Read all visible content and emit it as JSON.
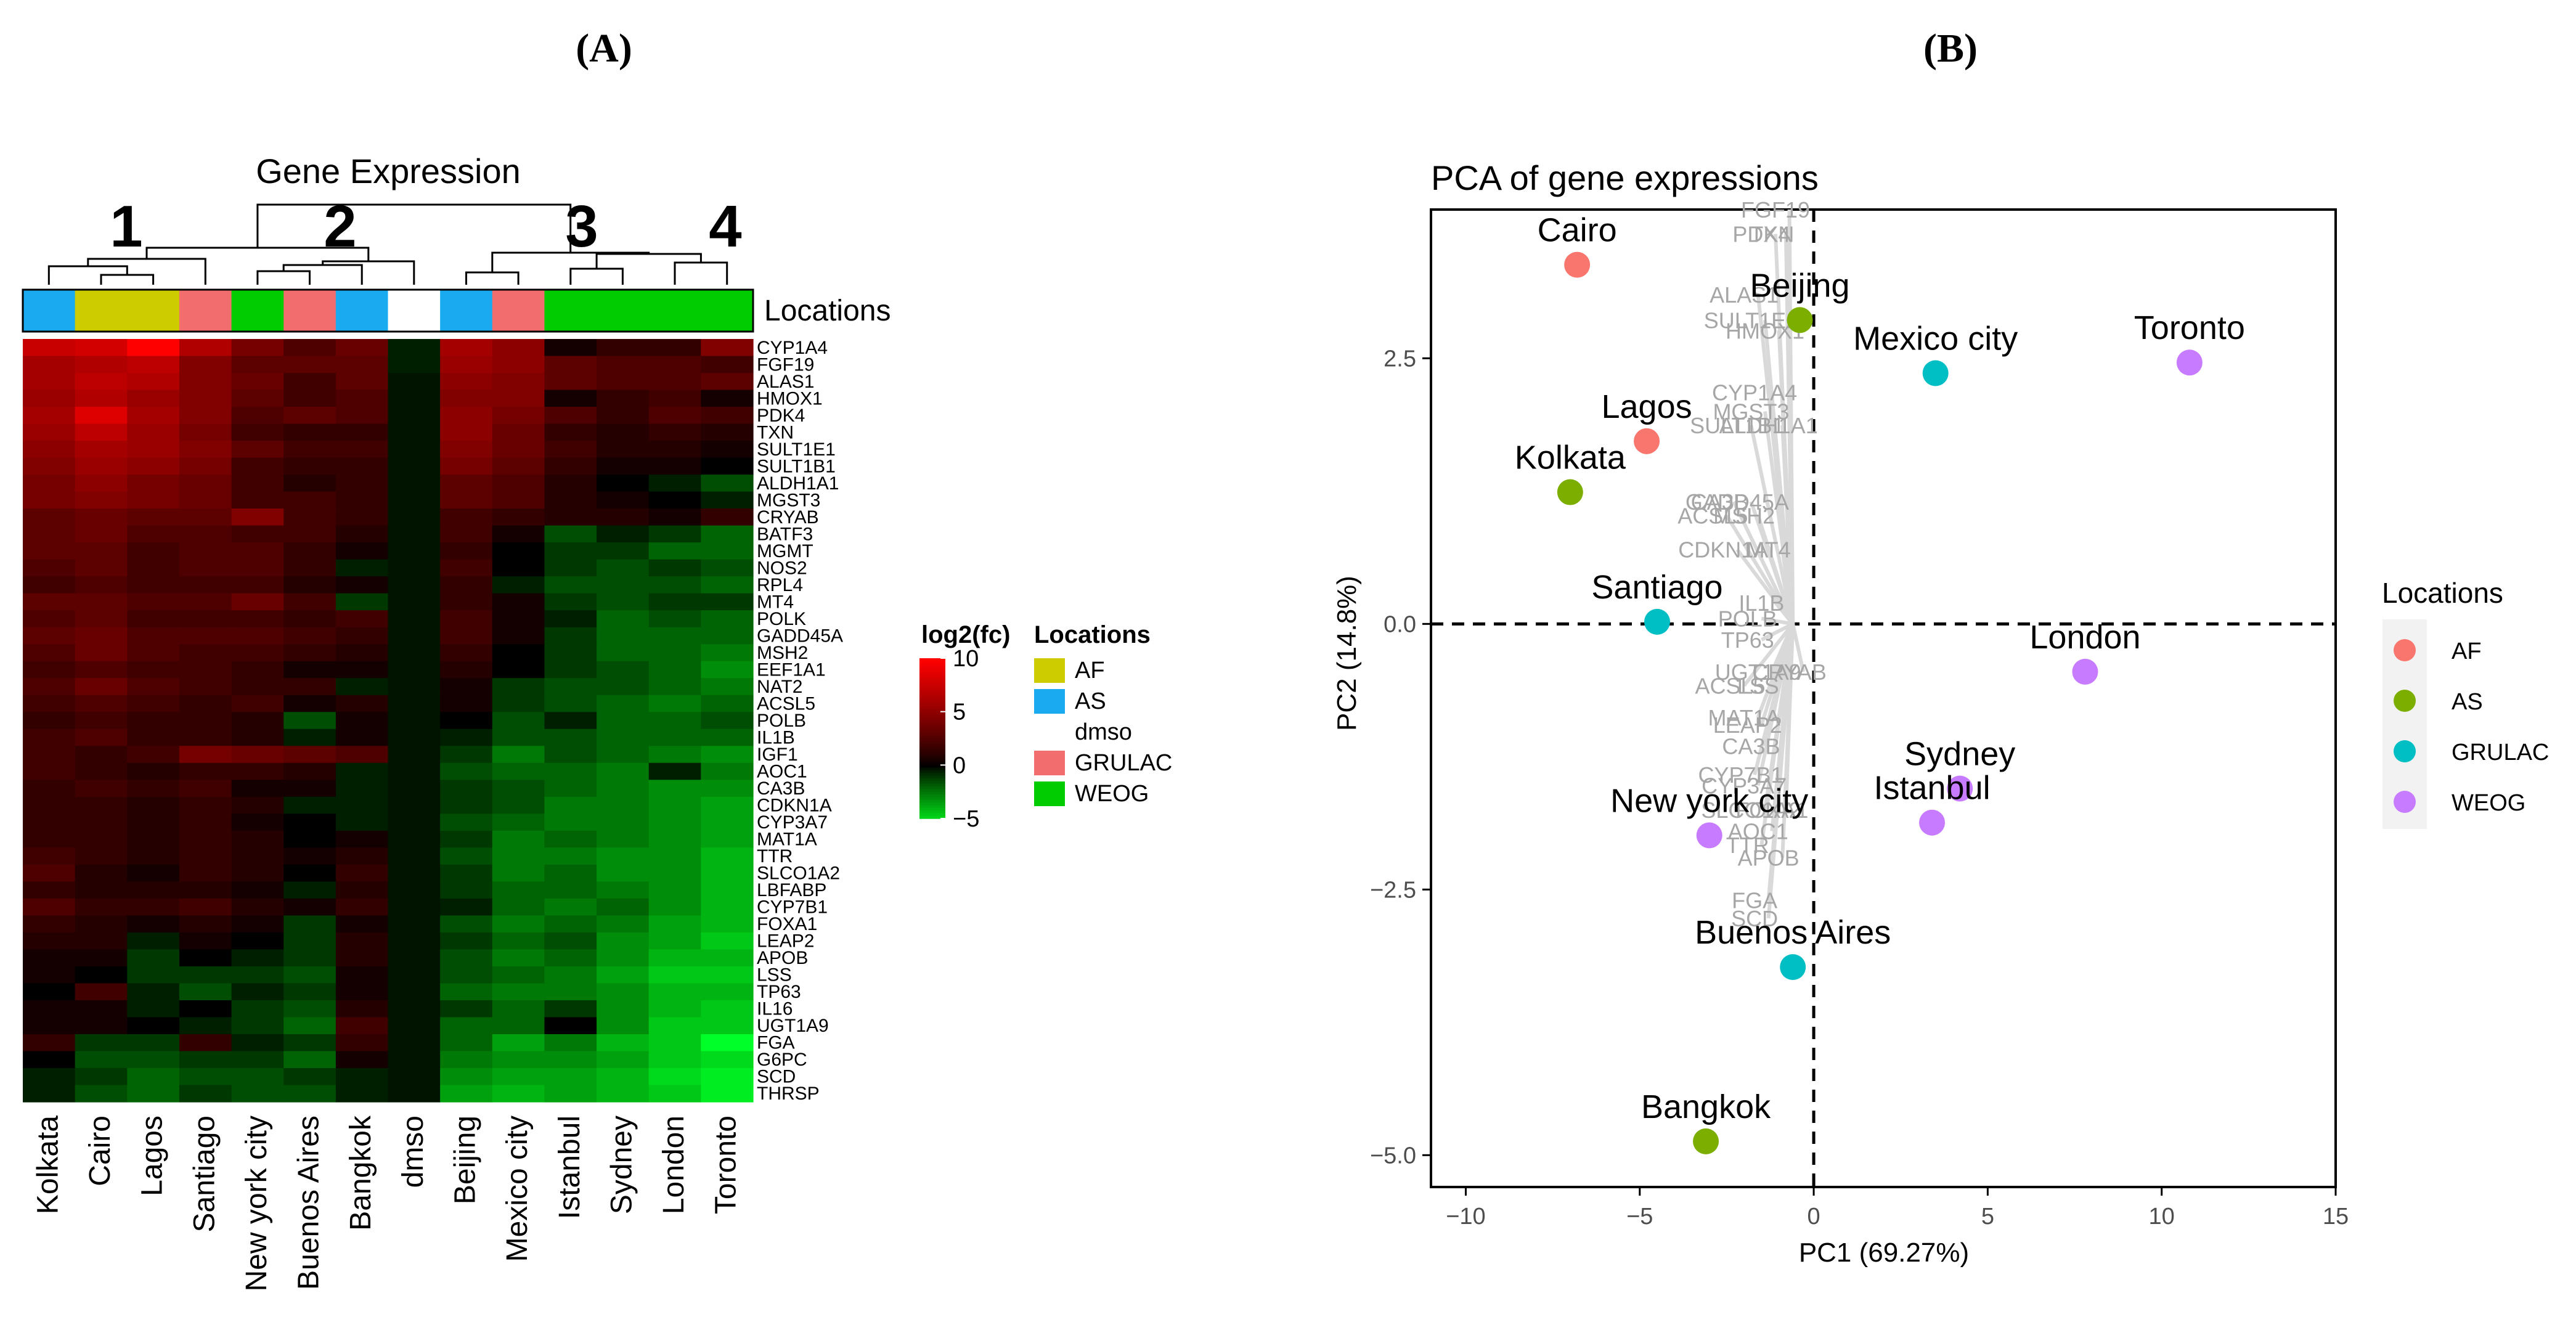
{
  "panel_labels": [
    "(A)",
    "(B)"
  ],
  "chart_data": [
    {
      "type": "heatmap",
      "title": "Gene Expression",
      "cluster_labels": [
        "1",
        "2",
        "3",
        "4"
      ],
      "columns": [
        "Kolkata",
        "Cairo",
        "Lagos",
        "Santiago",
        "New york city",
        "Buenos Aires",
        "Bangkok",
        "dmso",
        "Beijing",
        "Mexico city",
        "Istanbul",
        "Sydney",
        "London",
        "Toronto"
      ],
      "column_locations": [
        "AS",
        "AF",
        "AF",
        "GRULAC",
        "WEOG",
        "GRULAC",
        "AS",
        "dmso",
        "AS",
        "GRULAC",
        "WEOG",
        "WEOG",
        "WEOG",
        "WEOG"
      ],
      "annotation_label": "Locations",
      "genes": [
        "CYP1A4",
        "FGF19",
        "ALAS1",
        "HMOX1",
        "PDK4",
        "TXN",
        "SULT1E1",
        "SULT1B1",
        "ALDH1A1",
        "MGST3",
        "CRYAB",
        "BATF3",
        "MGMT",
        "NOS2",
        "RPL4",
        "MT4",
        "POLK",
        "GADD45A",
        "MSH2",
        "EEF1A1",
        "NAT2",
        "ACSL5",
        "POLB",
        "IL1B",
        "IGF1",
        "AOC1",
        "CA3B",
        "CDKN1A",
        "CYP3A7",
        "MAT1A",
        "TTR",
        "SLCO1A2",
        "LBFABP",
        "CYP7B1",
        "FOXA1",
        "LEAP2",
        "APOB",
        "LSS",
        "TP63",
        "IL16",
        "UGT1A9",
        "FGA",
        "G6PC",
        "SCD",
        "THRSP"
      ],
      "colorbar": {
        "title": "log2(fc)",
        "range": [
          -5,
          10
        ],
        "ticks": [
          "10",
          "5",
          "0",
          "−5"
        ],
        "tick_values": [
          10,
          5,
          0,
          -5
        ]
      },
      "legend": {
        "title": "Locations",
        "entries": [
          {
            "name": "AF",
            "color": "#cccc00"
          },
          {
            "name": "AS",
            "color": "#1aaaf0"
          },
          {
            "name": "dmso",
            "color": "#ffffff"
          },
          {
            "name": "GRULAC",
            "color": "#f26e6e"
          },
          {
            "name": "WEOG",
            "color": "#00cc00"
          }
        ]
      },
      "values": [
        [
          7.5,
          8.0,
          10.0,
          6.5,
          4.0,
          2.5,
          3.5,
          -0.5,
          6.0,
          5.0,
          0.5,
          1.5,
          1.5,
          4.5
        ],
        [
          6.0,
          6.5,
          7.0,
          4.5,
          3.0,
          3.0,
          3.0,
          -0.5,
          5.5,
          5.0,
          3.0,
          2.5,
          2.5,
          2.0
        ],
        [
          6.0,
          7.0,
          6.5,
          4.5,
          3.5,
          2.0,
          3.0,
          -0.3,
          5.0,
          4.5,
          3.0,
          2.5,
          2.5,
          3.0
        ],
        [
          5.5,
          6.5,
          5.5,
          4.5,
          3.0,
          2.0,
          2.5,
          -0.3,
          4.5,
          4.5,
          0.5,
          1.5,
          2.0,
          0.5
        ],
        [
          6.0,
          8.5,
          6.0,
          4.5,
          2.5,
          3.0,
          2.5,
          -0.3,
          5.0,
          4.0,
          2.5,
          1.5,
          2.5,
          2.0
        ],
        [
          5.5,
          7.0,
          5.5,
          4.0,
          2.0,
          1.5,
          1.5,
          -0.3,
          5.0,
          3.5,
          1.5,
          1.0,
          1.5,
          1.0
        ],
        [
          5.0,
          6.0,
          5.5,
          4.5,
          3.0,
          2.0,
          2.0,
          -0.3,
          4.5,
          3.5,
          2.0,
          1.0,
          1.0,
          0.5
        ],
        [
          4.5,
          5.5,
          5.0,
          4.0,
          2.0,
          1.5,
          1.5,
          -0.3,
          4.0,
          3.0,
          1.5,
          0.5,
          0.5,
          0.0
        ],
        [
          4.0,
          5.0,
          4.0,
          3.5,
          2.0,
          1.0,
          1.5,
          -0.3,
          3.0,
          2.5,
          1.0,
          0.0,
          -0.5,
          -1.5
        ],
        [
          4.0,
          4.5,
          4.0,
          3.5,
          2.0,
          2.0,
          1.5,
          -0.3,
          3.0,
          2.5,
          1.0,
          0.5,
          0.0,
          -0.5
        ],
        [
          3.0,
          3.5,
          3.0,
          3.0,
          4.5,
          2.0,
          1.5,
          -0.3,
          2.0,
          1.5,
          1.0,
          1.0,
          0.5,
          1.5
        ],
        [
          3.0,
          3.5,
          2.5,
          2.5,
          2.0,
          2.0,
          1.0,
          -0.3,
          2.0,
          0.5,
          -1.5,
          -0.5,
          -1.0,
          -2.0
        ],
        [
          3.0,
          3.0,
          2.0,
          2.5,
          2.5,
          1.5,
          0.5,
          -0.3,
          1.5,
          0.0,
          -1.0,
          -1.0,
          -2.0,
          -2.0
        ],
        [
          2.5,
          3.0,
          2.0,
          2.5,
          2.5,
          1.5,
          -0.5,
          -0.3,
          2.0,
          0.0,
          -1.0,
          -1.5,
          -1.0,
          -1.5
        ],
        [
          2.0,
          2.5,
          2.0,
          2.0,
          2.0,
          1.0,
          0.5,
          -0.3,
          1.5,
          -0.5,
          -1.5,
          -1.5,
          -1.5,
          -2.0
        ],
        [
          3.0,
          3.0,
          2.5,
          2.5,
          3.5,
          2.0,
          -1.0,
          -0.3,
          1.5,
          0.5,
          -1.0,
          -1.5,
          -1.0,
          -1.0
        ],
        [
          2.5,
          3.0,
          2.0,
          2.0,
          2.0,
          1.5,
          2.0,
          -0.3,
          2.0,
          0.5,
          -0.5,
          -2.0,
          -1.5,
          -2.0
        ],
        [
          3.0,
          3.5,
          2.5,
          2.5,
          2.5,
          2.0,
          1.5,
          -0.3,
          2.0,
          0.5,
          -1.0,
          -2.0,
          -2.0,
          -2.0
        ],
        [
          2.5,
          3.5,
          2.5,
          2.0,
          2.0,
          1.5,
          1.0,
          -0.3,
          1.5,
          0.0,
          -1.0,
          -2.0,
          -2.0,
          -2.5
        ],
        [
          2.0,
          2.5,
          2.0,
          2.0,
          1.5,
          0.5,
          0.5,
          -0.3,
          1.0,
          0.0,
          -1.0,
          -1.5,
          -2.0,
          -3.0
        ],
        [
          2.5,
          3.5,
          2.5,
          2.0,
          1.5,
          1.5,
          -0.5,
          -0.3,
          0.5,
          -1.0,
          -1.5,
          -1.5,
          -2.0,
          -2.5
        ],
        [
          2.0,
          2.5,
          2.0,
          1.5,
          2.0,
          0.5,
          1.0,
          -0.3,
          0.5,
          -1.0,
          -1.5,
          -2.0,
          -2.5,
          -2.0
        ],
        [
          1.5,
          2.0,
          1.5,
          1.5,
          1.0,
          -1.5,
          0.5,
          -0.3,
          0.0,
          -1.5,
          -0.5,
          -2.0,
          -2.0,
          -1.5
        ],
        [
          2.0,
          2.5,
          1.5,
          1.5,
          1.0,
          -0.5,
          0.5,
          -0.3,
          -0.5,
          -1.5,
          -1.5,
          -2.0,
          -2.0,
          -2.0
        ],
        [
          2.0,
          1.5,
          2.0,
          4.0,
          3.5,
          3.0,
          2.5,
          -0.3,
          -1.0,
          -2.5,
          -1.5,
          -2.0,
          -2.5,
          -3.0
        ],
        [
          2.0,
          1.5,
          1.0,
          1.5,
          1.5,
          1.0,
          -0.5,
          -0.3,
          -1.5,
          -2.0,
          -2.0,
          -2.5,
          -0.5,
          -2.5
        ],
        [
          1.5,
          2.0,
          1.5,
          2.0,
          0.5,
          0.5,
          -0.5,
          -0.3,
          -1.0,
          -1.5,
          -2.0,
          -2.5,
          -3.0,
          -3.0
        ],
        [
          1.5,
          1.5,
          1.0,
          1.5,
          1.0,
          -0.5,
          -0.5,
          -0.3,
          -1.0,
          -1.5,
          -2.5,
          -2.5,
          -3.0,
          -3.5
        ],
        [
          1.5,
          1.5,
          1.0,
          1.5,
          0.5,
          0.0,
          -0.5,
          -0.3,
          -1.5,
          -2.0,
          -2.5,
          -2.5,
          -3.0,
          -3.5
        ],
        [
          1.5,
          1.5,
          1.0,
          1.5,
          1.0,
          0.0,
          0.5,
          -0.3,
          -1.0,
          -2.5,
          -2.0,
          -2.5,
          -3.0,
          -3.5
        ],
        [
          2.0,
          1.5,
          1.0,
          1.5,
          1.0,
          0.5,
          1.0,
          -0.3,
          -1.5,
          -2.5,
          -2.5,
          -3.0,
          -3.0,
          -4.0
        ],
        [
          2.5,
          1.0,
          0.5,
          1.5,
          1.0,
          0.0,
          1.5,
          -0.3,
          -1.0,
          -2.5,
          -2.0,
          -3.0,
          -3.0,
          -4.0
        ],
        [
          1.5,
          1.0,
          1.0,
          1.0,
          0.5,
          -0.5,
          1.0,
          -0.3,
          -1.0,
          -2.0,
          -2.0,
          -2.5,
          -3.0,
          -4.0
        ],
        [
          2.5,
          1.5,
          1.5,
          2.0,
          1.0,
          0.5,
          1.5,
          -0.3,
          -0.5,
          -2.0,
          -2.5,
          -2.0,
          -3.0,
          -4.0
        ],
        [
          1.5,
          1.0,
          0.5,
          1.0,
          0.5,
          -1.0,
          0.5,
          -0.3,
          -1.5,
          -2.5,
          -2.0,
          -2.5,
          -3.5,
          -4.0
        ],
        [
          1.0,
          1.0,
          -0.5,
          0.5,
          0.0,
          -1.0,
          1.0,
          -0.3,
          -1.0,
          -2.0,
          -1.5,
          -3.0,
          -3.5,
          -4.5
        ],
        [
          0.5,
          0.5,
          -1.0,
          0.0,
          -0.5,
          -1.0,
          1.0,
          -0.3,
          -1.5,
          -2.5,
          -2.0,
          -3.0,
          -4.0,
          -4.0
        ],
        [
          0.5,
          0.0,
          -1.0,
          -1.0,
          -1.0,
          -1.5,
          0.5,
          -0.3,
          -1.5,
          -2.0,
          -2.5,
          -3.5,
          -4.5,
          -4.5
        ],
        [
          0.0,
          2.0,
          -0.5,
          -1.5,
          -0.5,
          -1.0,
          0.5,
          -0.3,
          -2.0,
          -2.5,
          -2.5,
          -3.0,
          -4.0,
          -4.0
        ],
        [
          0.5,
          0.5,
          -0.5,
          0.0,
          -1.0,
          -1.5,
          1.0,
          -0.3,
          -1.0,
          -2.0,
          -1.0,
          -3.0,
          -4.0,
          -4.5
        ],
        [
          0.5,
          0.5,
          0.0,
          -0.5,
          -1.0,
          -2.0,
          2.0,
          -0.3,
          -2.0,
          -2.0,
          0.0,
          -3.0,
          -4.5,
          -4.5
        ],
        [
          1.5,
          -1.0,
          -1.0,
          1.5,
          -0.5,
          -1.0,
          1.5,
          -0.3,
          -2.0,
          -3.5,
          -2.5,
          -4.0,
          -4.5,
          -6.0
        ],
        [
          0.0,
          -1.5,
          -1.5,
          -1.0,
          -1.0,
          -2.0,
          0.5,
          -0.3,
          -2.5,
          -3.0,
          -3.0,
          -3.5,
          -4.5,
          -5.0
        ],
        [
          -0.5,
          -1.0,
          -2.0,
          -1.5,
          -1.5,
          -1.0,
          -0.5,
          -0.3,
          -3.0,
          -3.5,
          -3.5,
          -4.0,
          -5.0,
          -5.5
        ],
        [
          -0.5,
          -1.5,
          -2.0,
          -1.0,
          -1.5,
          -1.5,
          -0.5,
          -0.3,
          -3.5,
          -4.0,
          -3.5,
          -4.0,
          -4.5,
          -5.5
        ]
      ]
    },
    {
      "type": "scatter",
      "title": "PCA of gene expressions",
      "xlabel": "PC1 (69.27%)",
      "ylabel": "PC2 (14.8%)",
      "xlim": [
        -11,
        15
      ],
      "ylim": [
        -5.3,
        3.9
      ],
      "xticks": [
        -10,
        -5,
        0,
        5,
        10,
        15
      ],
      "yticks": [
        -5.0,
        -2.5,
        0.0,
        2.5
      ],
      "xtick_labels": [
        "−10",
        "−5",
        "0",
        "5",
        "10",
        "15"
      ],
      "ytick_labels": [
        "−5.0",
        "−2.5",
        "0.0",
        "2.5"
      ],
      "legend": {
        "title": "Locations",
        "position": "right",
        "entries": [
          {
            "name": "AF",
            "color": "#f8766d"
          },
          {
            "name": "AS",
            "color": "#7cae00"
          },
          {
            "name": "GRULAC",
            "color": "#00bfc4"
          },
          {
            "name": "WEOG",
            "color": "#c77cff"
          }
        ]
      },
      "points": [
        {
          "label": "Cairo",
          "x": -6.8,
          "y": 3.38,
          "group": "AF"
        },
        {
          "label": "Beijing",
          "x": -0.4,
          "y": 2.86,
          "group": "AS"
        },
        {
          "label": "Mexico city",
          "x": 3.5,
          "y": 2.36,
          "group": "GRULAC"
        },
        {
          "label": "Toronto",
          "x": 10.8,
          "y": 2.46,
          "group": "WEOG"
        },
        {
          "label": "Lagos",
          "x": -4.8,
          "y": 1.72,
          "group": "AF"
        },
        {
          "label": "Kolkata",
          "x": -7.0,
          "y": 1.24,
          "group": "AS"
        },
        {
          "label": "Santiago",
          "x": -4.5,
          "y": 0.02,
          "group": "GRULAC"
        },
        {
          "label": "London",
          "x": 7.8,
          "y": -0.45,
          "group": "WEOG"
        },
        {
          "label": "Sydney",
          "x": 4.2,
          "y": -1.55,
          "group": "WEOG"
        },
        {
          "label": "Istanbul",
          "x": 3.4,
          "y": -1.87,
          "group": "WEOG"
        },
        {
          "label": "New york city",
          "x": -3.0,
          "y": -1.99,
          "group": "WEOG"
        },
        {
          "label": "Buenos Aires",
          "x": -0.6,
          "y": -3.23,
          "group": "GRULAC"
        },
        {
          "label": "Bangkok",
          "x": -3.1,
          "y": -4.87,
          "group": "AS"
        }
      ],
      "gene_loadings": [
        {
          "label": "FGF19",
          "x": -1.1,
          "y": 3.9
        },
        {
          "label": "PDK4",
          "x": -1.5,
          "y": 3.67
        },
        {
          "label": "TXN",
          "x": -1.2,
          "y": 3.67
        },
        {
          "label": "ALAS1",
          "x": -2.0,
          "y": 3.1
        },
        {
          "label": "SULT1E1",
          "x": -1.8,
          "y": 2.86
        },
        {
          "label": "HMOX1",
          "x": -1.4,
          "y": 2.76
        },
        {
          "label": "CYP1A4",
          "x": -1.7,
          "y": 2.18
        },
        {
          "label": "MGST3",
          "x": -1.8,
          "y": 2.0
        },
        {
          "label": "SULT1B1",
          "x": -2.2,
          "y": 1.87
        },
        {
          "label": "ALDH1A1",
          "x": -1.3,
          "y": 1.87
        },
        {
          "label": "CA3B",
          "x": -2.7,
          "y": 1.15
        },
        {
          "label": "GADD45A",
          "x": -2.2,
          "y": 1.15
        },
        {
          "label": "ACSL5",
          "x": -2.9,
          "y": 1.02
        },
        {
          "label": "MSH2",
          "x": -2.0,
          "y": 1.02
        },
        {
          "label": "CDKN1A",
          "x": -2.6,
          "y": 0.7
        },
        {
          "label": "MT4",
          "x": -1.3,
          "y": 0.7
        },
        {
          "label": "IL1B",
          "x": -1.5,
          "y": 0.2
        },
        {
          "label": "POLB",
          "x": -1.9,
          "y": 0.05
        },
        {
          "label": "TP63",
          "x": -1.9,
          "y": -0.15
        },
        {
          "label": "UGT1A9",
          "x": -1.6,
          "y": -0.45
        },
        {
          "label": "CRYAB",
          "x": -0.7,
          "y": -0.45
        },
        {
          "label": "ACSL5",
          "x": -2.4,
          "y": -0.58
        },
        {
          "label": "LSS",
          "x": -1.6,
          "y": -0.58
        },
        {
          "label": "MAT1A",
          "x": -2.0,
          "y": -0.88
        },
        {
          "label": "LEAP2",
          "x": -1.9,
          "y": -0.95
        },
        {
          "label": "CA3B",
          "x": -1.8,
          "y": -1.15
        },
        {
          "label": "CYP7B1",
          "x": -2.1,
          "y": -1.42
        },
        {
          "label": "CYP3A7",
          "x": -2.0,
          "y": -1.52
        },
        {
          "label": "SLCO1A2",
          "x": -1.8,
          "y": -1.75
        },
        {
          "label": "FOXA1",
          "x": -1.2,
          "y": -1.75
        },
        {
          "label": "AOC1",
          "x": -1.6,
          "y": -1.95
        },
        {
          "label": "TTR",
          "x": -1.9,
          "y": -2.08
        },
        {
          "label": "APOB",
          "x": -1.3,
          "y": -2.2
        },
        {
          "label": "FGA",
          "x": -1.7,
          "y": -2.6
        },
        {
          "label": "SCD",
          "x": -1.7,
          "y": -2.77
        }
      ]
    }
  ]
}
